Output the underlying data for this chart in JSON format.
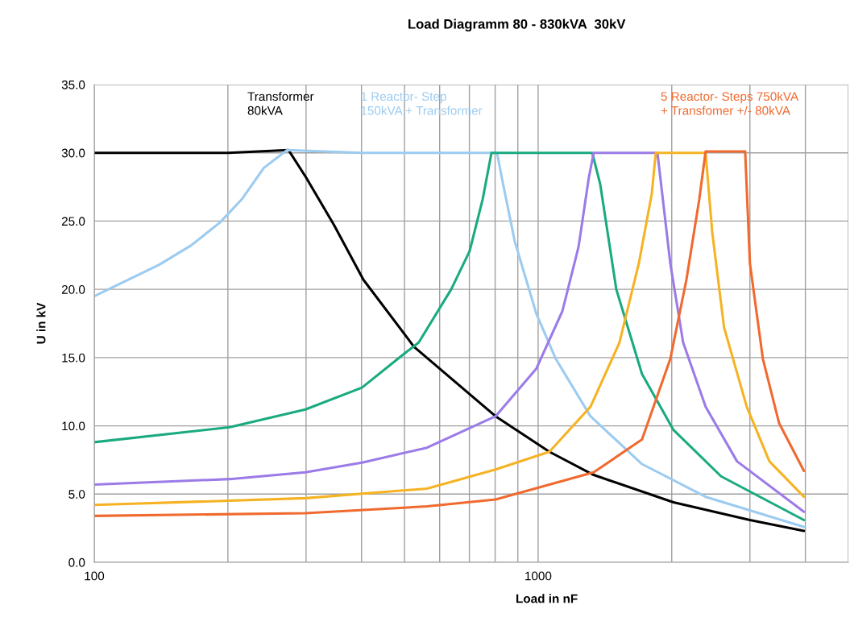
{
  "chart_data": {
    "type": "line",
    "title": "Load Diagramm 80 - 830kVA  30kV",
    "xlabel": "Load in nF",
    "ylabel": "U in kV",
    "log": "x",
    "xlim": [
      100,
      5000
    ],
    "xticks": [
      100,
      {
        "value": 200,
        "label": null
      },
      {
        "value": 300,
        "label": null
      },
      {
        "value": 400,
        "label": null
      },
      {
        "value": 500,
        "label": null
      },
      {
        "value": 600,
        "label": null
      },
      {
        "value": 700,
        "label": null
      },
      {
        "value": 800,
        "label": null
      },
      {
        "value": 900,
        "label": null
      },
      1000,
      {
        "value": 2000,
        "label": null
      },
      {
        "value": 3000,
        "label": null
      },
      {
        "value": 4000,
        "label": null
      },
      {
        "value": 5000,
        "label": null
      }
    ],
    "ylim": [
      0,
      35
    ],
    "yticks": [
      {
        "value": 0,
        "label": "0.0"
      },
      {
        "value": 5,
        "label": "5.0"
      },
      {
        "value": 10,
        "label": "10.0"
      },
      {
        "value": 15,
        "label": "15.0"
      },
      {
        "value": 20,
        "label": "20.0"
      },
      {
        "value": 25,
        "label": "25.0"
      },
      {
        "value": 30,
        "label": "30.0"
      },
      {
        "value": 35,
        "label": "35.0"
      }
    ],
    "grid": true,
    "legend": false,
    "marker": "none",
    "line_style": "solid",
    "series": [
      {
        "name": "Transformer\n80kVA",
        "color": "#000000",
        "x": [
          100,
          200,
          274,
          300,
          347,
          404,
          525,
          802,
          1060,
          1334,
          2018,
          3000,
          3970
        ],
        "values": [
          30,
          30,
          30.2,
          28.2,
          24.7,
          20.7,
          15.8,
          10.7,
          8.1,
          6.4,
          4.4,
          3.1,
          2.3
        ]
      },
      {
        "name": "1 Reactor- Step\n150kVA + Transformer",
        "color": "#9ccbf0",
        "x": [
          100,
          140,
          165,
          192,
          215,
          241,
          272,
          400,
          808,
          828,
          886,
          991,
          1096,
          1312,
          1714,
          2384,
          3970
        ],
        "values": [
          19.5,
          21.8,
          23.2,
          24.9,
          26.6,
          28.9,
          30.2,
          30,
          30,
          28.2,
          23.5,
          18.2,
          14.9,
          10.7,
          7.2,
          4.8,
          2.6
        ]
      },
      {
        "color": "#1aaa80",
        "x": [
          100,
          202,
          299,
          401,
          500,
          538,
          637,
          701,
          750,
          785,
          1324,
          1380,
          1500,
          1714,
          2018,
          2583,
          3970
        ],
        "values": [
          8.8,
          9.9,
          11.2,
          12.8,
          15.3,
          16.1,
          20.0,
          22.8,
          26.6,
          30,
          30,
          27.7,
          20.0,
          13.8,
          9.7,
          6.3,
          3.1
        ]
      },
      {
        "color": "#9b7be8",
        "x": [
          100,
          202,
          299,
          401,
          562,
          802,
          991,
          1134,
          1233,
          1301,
          1334,
          1857,
          1985,
          2122,
          2384,
          2806,
          3970
        ],
        "values": [
          5.7,
          6.1,
          6.6,
          7.3,
          8.4,
          10.7,
          14.2,
          18.4,
          23.1,
          28.2,
          30,
          30,
          21.9,
          16.1,
          11.4,
          7.4,
          3.7
        ]
      },
      {
        "color": "#f5b324",
        "x": [
          100,
          299,
          562,
          802,
          1060,
          1312,
          1525,
          1686,
          1803,
          1841,
          2384,
          2467,
          2624,
          2951,
          3319,
          3970
        ],
        "values": [
          4.2,
          4.7,
          5.4,
          6.8,
          8.1,
          11.4,
          16.1,
          21.9,
          27.0,
          30,
          30,
          24.2,
          17.2,
          11.4,
          7.4,
          4.8
        ]
      },
      {
        "name": "5 Reactor- Steps 750kVA\n+ Transfomer +/- 80kVA",
        "color": "#f06a2f",
        "x": [
          100,
          299,
          562,
          802,
          1334,
          1714,
          1985,
          2158,
          2307,
          2384,
          2927,
          3000,
          3209,
          3490,
          3970
        ],
        "values": [
          3.4,
          3.6,
          4.1,
          4.6,
          6.6,
          9.0,
          14.9,
          20.7,
          26.6,
          30.1,
          30.1,
          21.9,
          14.9,
          10.2,
          6.7
        ]
      }
    ]
  }
}
